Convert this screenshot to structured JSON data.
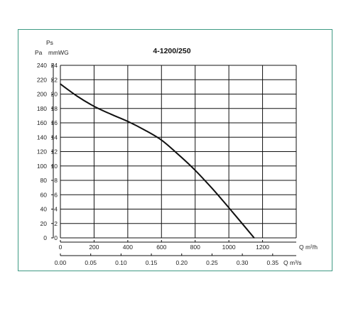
{
  "chart_data": {
    "type": "line",
    "title": "4-1200/250",
    "y_quantity": "Ps",
    "y_units": [
      "Pa",
      "mmWG"
    ],
    "x_units": [
      "Q m³/h",
      "Q m³/s"
    ],
    "x_m3h_ticks": [
      "0",
      "200",
      "400",
      "600",
      "800",
      "1000",
      "1200"
    ],
    "x_m3s_ticks": [
      "0.00",
      "0.05",
      "0.10",
      "0.15",
      "0.20",
      "0.25",
      "0.30",
      "0.35"
    ],
    "y_pa_ticks": [
      "0",
      "20",
      "40",
      "60",
      "80",
      "100",
      "120",
      "140",
      "160",
      "180",
      "200",
      "220",
      "240"
    ],
    "y_mmwg_ticks": [
      "0",
      "2",
      "4",
      "6",
      "8",
      "10",
      "12",
      "14",
      "16",
      "18",
      "20",
      "22",
      "24"
    ],
    "xlim_m3h": [
      0,
      1400
    ],
    "ylim_mmwg": [
      0,
      24
    ],
    "grid": true,
    "series": [
      {
        "color": "#111111",
        "x": [
          0,
          100,
          200,
          300,
          400,
          500,
          600,
          700,
          800,
          900,
          1000,
          1100,
          1150
        ],
        "y": [
          21.4,
          19.7,
          18.3,
          17.2,
          16.2,
          15.0,
          13.6,
          11.6,
          9.4,
          6.9,
          4.2,
          1.4,
          0.0
        ]
      }
    ]
  }
}
